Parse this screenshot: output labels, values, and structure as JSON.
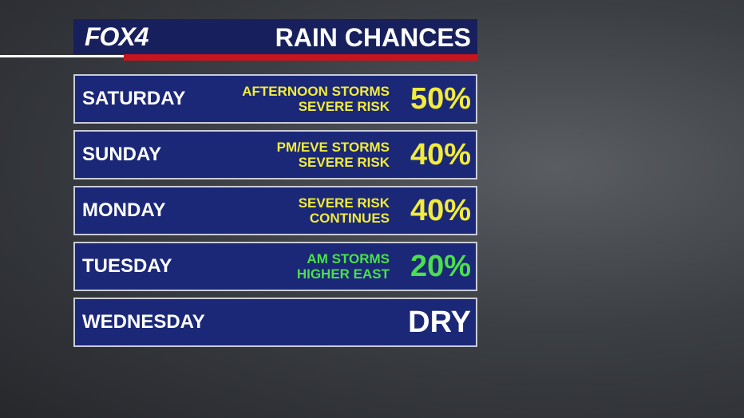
{
  "header": {
    "logo": "FOX4",
    "title": "RAIN CHANCES"
  },
  "rows": [
    {
      "day": "SATURDAY",
      "note": [
        "AFTERNOON STORMS",
        "SEVERE RISK"
      ],
      "value": "50%",
      "color": "#f2ec3a"
    },
    {
      "day": "SUNDAY",
      "note": [
        "PM/EVE STORMS",
        "SEVERE RISK"
      ],
      "value": "40%",
      "color": "#f2ec3a"
    },
    {
      "day": "MONDAY",
      "note": [
        "SEVERE RISK",
        "CONTINUES"
      ],
      "value": "40%",
      "color": "#f2ec3a"
    },
    {
      "day": "TUESDAY",
      "note": [
        "AM STORMS",
        "HIGHER EAST"
      ],
      "value": "20%",
      "color": "#4be04b"
    },
    {
      "day": "WEDNESDAY",
      "note": [],
      "value": "DRY",
      "color": "#ffffff"
    }
  ]
}
